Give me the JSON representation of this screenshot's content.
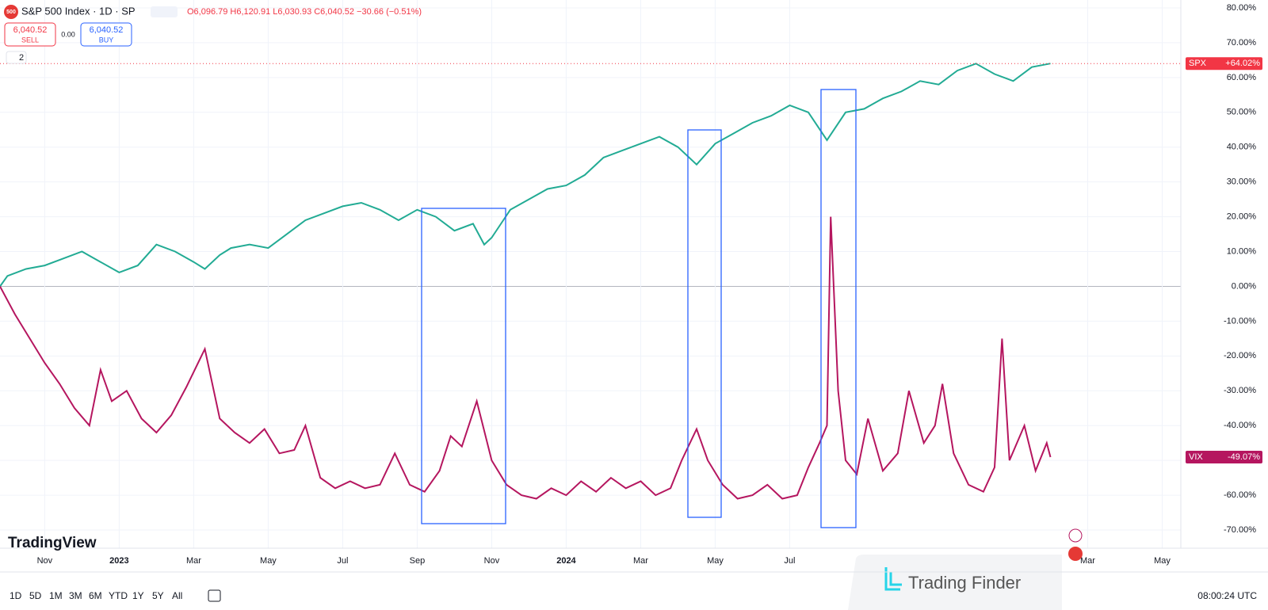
{
  "header": {
    "symbol": "S&P 500 Index · 1D · SP",
    "logo": "500",
    "ohlc": "O6,096.79 H6,120.91 L6,030.93 C6,040.52 −30.66 (−0.51%)",
    "sell_price": "6,040.52",
    "sell": "SELL",
    "spread": "0.00",
    "buy_price": "6,040.52",
    "buy": "BUY",
    "collapse": "2"
  },
  "branding": {
    "logo": "TradingView",
    "watermark": "Trading Finder"
  },
  "toolbar": {
    "ranges": [
      "1D",
      "5D",
      "1M",
      "3M",
      "6M",
      "YTD",
      "1Y",
      "5Y",
      "All"
    ],
    "clock": "08:00:24 UTC"
  },
  "chart_data": {
    "type": "line",
    "grid": true,
    "xlim": [
      -1.2,
      30.5
    ],
    "ylim": [
      -70,
      80
    ],
    "xticks": [
      {
        "value": 0,
        "label": "Nov"
      },
      {
        "value": 2,
        "label": "2023"
      },
      {
        "value": 4,
        "label": "Mar"
      },
      {
        "value": 6,
        "label": "May"
      },
      {
        "value": 8,
        "label": "Jul"
      },
      {
        "value": 10,
        "label": "Sep"
      },
      {
        "value": 12,
        "label": "Nov"
      },
      {
        "value": 14,
        "label": "2024"
      },
      {
        "value": 16,
        "label": "Mar"
      },
      {
        "value": 18,
        "label": "May"
      },
      {
        "value": 20,
        "label": "Jul"
      },
      {
        "value": 28,
        "label": "Mar"
      },
      {
        "value": 30,
        "label": "May"
      }
    ],
    "yticks": [
      {
        "value": -70,
        "label": "-70.00%"
      },
      {
        "value": -60,
        "label": "-60.00%"
      },
      {
        "value": -50,
        "label": "-50.00%"
      },
      {
        "value": -40,
        "label": "-40.00%"
      },
      {
        "value": -30,
        "label": "-30.00%"
      },
      {
        "value": -20,
        "label": "-20.00%"
      },
      {
        "value": -10,
        "label": "-10.00%"
      },
      {
        "value": 0,
        "label": "0.00%"
      },
      {
        "value": 10,
        "label": "10.00%"
      },
      {
        "value": 20,
        "label": "20.00%"
      },
      {
        "value": 30,
        "label": "30.00%"
      },
      {
        "value": 40,
        "label": "40.00%"
      },
      {
        "value": 50,
        "label": "50.00%"
      },
      {
        "value": 60,
        "label": "60.00%"
      },
      {
        "value": 70,
        "label": "70.00%"
      },
      {
        "value": 80,
        "label": "80.00%"
      }
    ],
    "series": [
      {
        "name": "SPX",
        "color": "#22ab94",
        "label_color": "#f23645",
        "last_label": "+64.02%",
        "x": [
          -1.2,
          -1,
          -0.5,
          0,
          0.5,
          1,
          1.5,
          2,
          2.5,
          3,
          3.5,
          4,
          4.3,
          4.7,
          5,
          5.5,
          6,
          6.5,
          7,
          7.5,
          8,
          8.5,
          9,
          9.5,
          10,
          10.5,
          11,
          11.5,
          11.8,
          12,
          12.5,
          13,
          13.5,
          14,
          14.5,
          15,
          15.5,
          16,
          16.5,
          17,
          17.5,
          18,
          18.5,
          19,
          19.5,
          20,
          20.5,
          21,
          21.5,
          22,
          22.5,
          23,
          23.5,
          24,
          24.5,
          25,
          25.5,
          26,
          26.5,
          27
        ],
        "values": [
          0,
          3,
          5,
          6,
          8,
          10,
          7,
          4,
          6,
          12,
          10,
          7,
          5,
          9,
          11,
          12,
          11,
          15,
          19,
          21,
          23,
          24,
          22,
          19,
          22,
          20,
          16,
          18,
          12,
          14,
          22,
          25,
          28,
          29,
          32,
          37,
          39,
          41,
          43,
          40,
          35,
          41,
          44,
          47,
          49,
          52,
          50,
          42,
          50,
          51,
          54,
          56,
          59,
          58,
          62,
          64,
          61,
          59,
          63,
          64.02
        ]
      },
      {
        "name": "VIX",
        "color": "#b5165f",
        "label_color": "#b5165f",
        "last_label": "-49.07%",
        "x": [
          -1.2,
          -0.8,
          -0.4,
          0,
          0.4,
          0.8,
          1.2,
          1.5,
          1.8,
          2.2,
          2.6,
          3,
          3.4,
          3.8,
          4.3,
          4.7,
          5.1,
          5.5,
          5.9,
          6.3,
          6.7,
          7,
          7.4,
          7.8,
          8.2,
          8.6,
          9,
          9.4,
          9.8,
          10.2,
          10.6,
          10.9,
          11.2,
          11.6,
          12,
          12.4,
          12.8,
          13.2,
          13.6,
          14,
          14.4,
          14.8,
          15.2,
          15.6,
          16,
          16.4,
          16.8,
          17.1,
          17.5,
          17.8,
          18.2,
          18.6,
          19,
          19.4,
          19.8,
          20.2,
          20.5,
          20.8,
          21,
          21.1,
          21.3,
          21.5,
          21.8,
          22.1,
          22.5,
          22.9,
          23.2,
          23.6,
          23.9,
          24.1,
          24.4,
          24.8,
          25.2,
          25.5,
          25.7,
          25.9,
          26.3,
          26.6,
          26.9,
          27
        ],
        "values": [
          0,
          -8,
          -15,
          -22,
          -28,
          -35,
          -40,
          -24,
          -33,
          -30,
          -38,
          -42,
          -37,
          -29,
          -18,
          -38,
          -42,
          -45,
          -41,
          -48,
          -47,
          -40,
          -55,
          -58,
          -56,
          -58,
          -57,
          -48,
          -57,
          -59,
          -53,
          -43,
          -46,
          -33,
          -50,
          -57,
          -60,
          -61,
          -58,
          -60,
          -56,
          -59,
          -55,
          -58,
          -56,
          -60,
          -58,
          -50,
          -41,
          -50,
          -57,
          -61,
          -60,
          -57,
          -61,
          -60,
          -52,
          -45,
          -40,
          20,
          -30,
          -50,
          -54,
          -38,
          -53,
          -48,
          -30,
          -45,
          -40,
          -28,
          -48,
          -57,
          -59,
          -52,
          -15,
          -50,
          -40,
          -53,
          -45,
          -49.07
        ]
      }
    ]
  }
}
